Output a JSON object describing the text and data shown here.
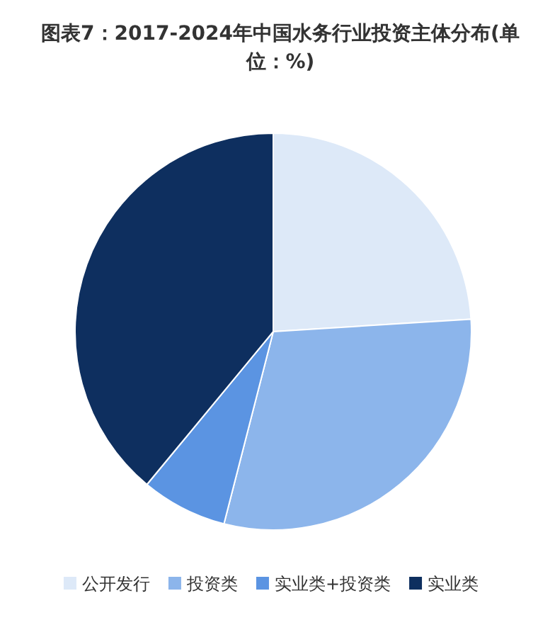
{
  "chart_data": {
    "type": "pie",
    "title": "图表7：2017-2024年中国水务行业投资主体分布(单位：%)",
    "categories": [
      "公开发行",
      "投资类",
      "实业类+投资类",
      "实业类"
    ],
    "values": [
      24,
      30,
      7,
      39
    ],
    "colors": [
      "#dde9f8",
      "#8cb5eb",
      "#5b94e2",
      "#0e2f5f"
    ],
    "legend": "bottom"
  }
}
